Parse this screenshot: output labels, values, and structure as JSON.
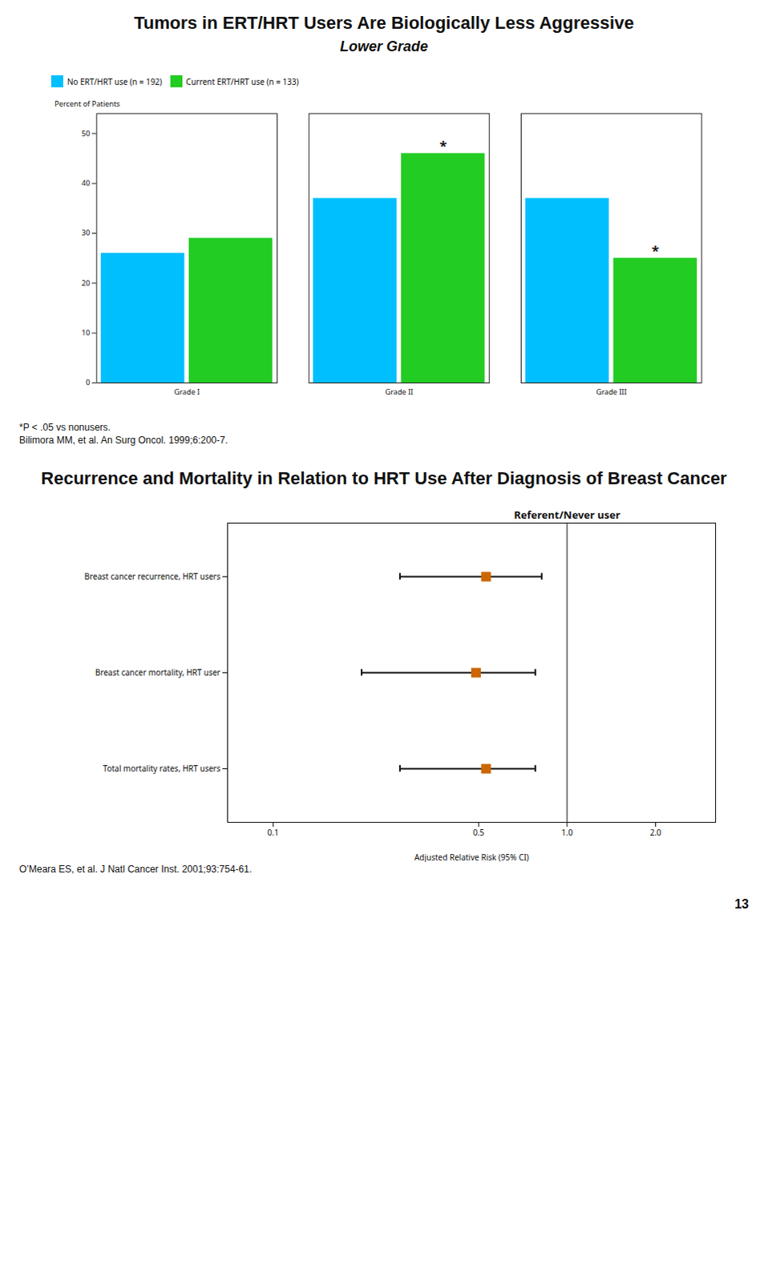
{
  "chart_data": [
    {
      "type": "bar",
      "title": "Tumors in ERT/HRT Users Are Biologically Less Aggressive",
      "subtitle": "Lower Grade",
      "ylabel": "Percent of Patients",
      "categories": [
        "Grade I",
        "Grade II",
        "Grade III"
      ],
      "series": [
        {
          "name": "No ERT/HRT use (n = 192)",
          "color": "#00bfff",
          "values": [
            26,
            37,
            37
          ]
        },
        {
          "name": "Current ERT/HRT use (n = 133)",
          "color": "#22cc22",
          "values": [
            29,
            46,
            25
          ]
        }
      ],
      "ylim": [
        0,
        54
      ],
      "yticks": [
        0,
        10,
        20,
        30,
        40,
        50
      ],
      "legend": "upper left",
      "grid": false,
      "annotations": [
        {
          "text": "*",
          "category": "Grade II",
          "series": "Current ERT/HRT use (n = 133)"
        },
        {
          "text": "*",
          "category": "Grade III",
          "series": "Current ERT/HRT use (n = 133)"
        }
      ],
      "notes": [
        "*P < .05 vs nonusers.",
        "Bilimora MM, et al. An Surg Oncol. 1999;6:200-7."
      ]
    },
    {
      "type": "forest",
      "title": "Recurrence and Mortality in Relation to HRT Use After Diagnosis of Breast Cancer",
      "xlabel": "Adjusted Relative Risk (95% CI)",
      "categories": [
        "Breast cancer recurrence, HRT users",
        "Breast cancer mortality, HRT user",
        "Total mortality rates, HRT users"
      ],
      "values": [
        0.53,
        0.49,
        0.53
      ],
      "ci_low": [
        0.27,
        0.2,
        0.27
      ],
      "ci_high": [
        0.82,
        0.78,
        0.78
      ],
      "color": "#cc6600",
      "marker": "square",
      "log": "x",
      "xlim": [
        0.07,
        3.2
      ],
      "xticks": [
        0.1,
        0.5,
        {
          "value": 1.0,
          "label": "1.0"
        },
        {
          "value": 2.0,
          "label": "2.0"
        }
      ],
      "grid": false,
      "annotations": [
        {
          "text": "Referent/Never user",
          "x": 1.0
        }
      ],
      "notes": [
        "O’Meara ES, et al. J Natl Cancer Inst. 2001;93:754-61."
      ]
    }
  ],
  "page_number": "13"
}
